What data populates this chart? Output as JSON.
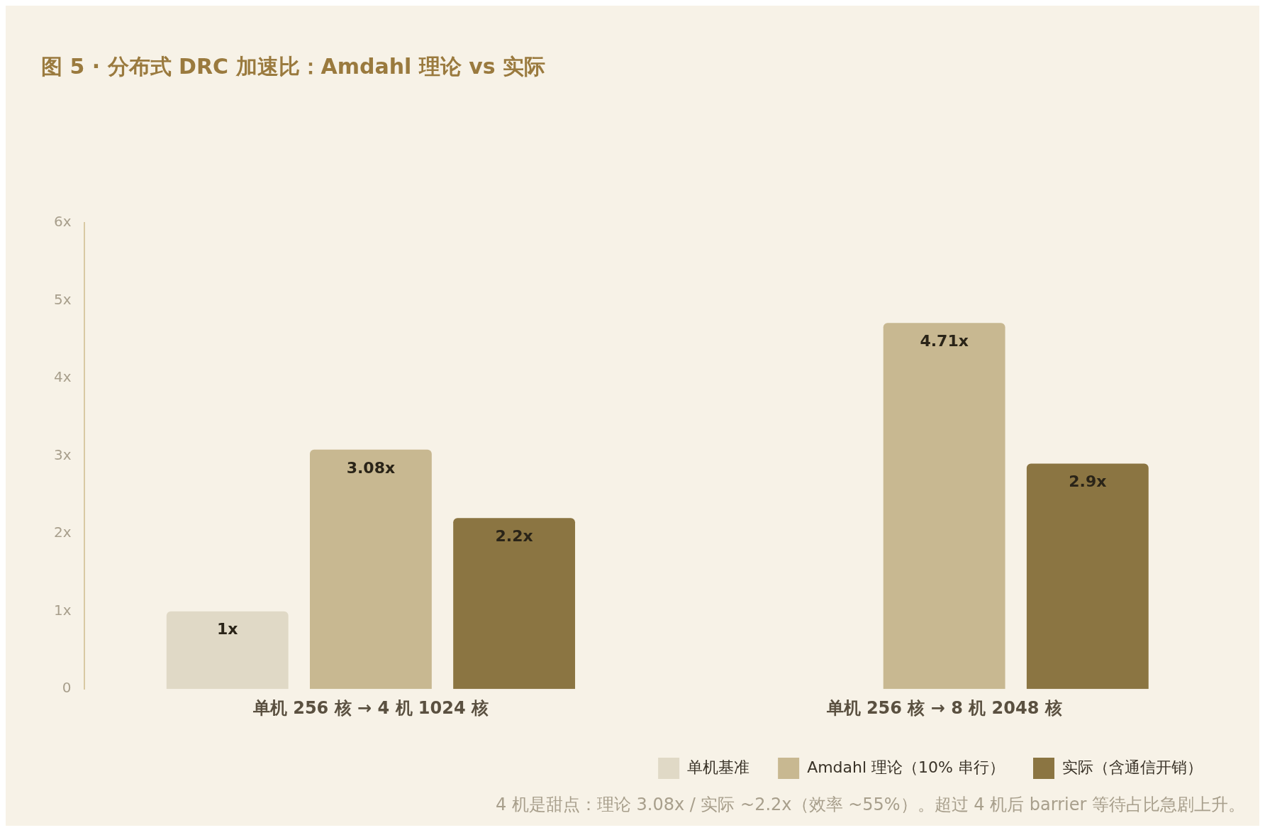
{
  "chart_data": {
    "type": "bar",
    "title": "图 5 · 分布式 DRC 加速比：Amdahl 理论 vs 实际",
    "categories": [
      "单机 256 核 → 4 机 1024 核",
      "单机 256 核 → 8 机 2048 核"
    ],
    "series": [
      {
        "name": "单机基准",
        "color": "#e0d9c6",
        "values": [
          1,
          null
        ],
        "value_labels": [
          "1x",
          null
        ]
      },
      {
        "name": "Amdahl 理论（10% 串行）",
        "color": "#c8b891",
        "values": [
          3.08,
          4.71
        ],
        "value_labels": [
          "3.08x",
          "4.71x"
        ]
      },
      {
        "name": "实际（含通信开销）",
        "color": "#8b7542",
        "values": [
          2.2,
          2.9
        ],
        "value_labels": [
          "2.2x",
          "2.9x"
        ]
      }
    ],
    "ylim": [
      0,
      6
    ],
    "yticks": [
      0,
      {
        "value": 1,
        "label": "1x"
      },
      {
        "value": 2,
        "label": "2x"
      },
      {
        "value": 3,
        "label": "3x"
      },
      {
        "value": 4,
        "label": "4x"
      },
      {
        "value": 5,
        "label": "5x"
      },
      {
        "value": 6,
        "label": "6x"
      }
    ],
    "grid": false,
    "legend": "bottom",
    "annotations": [
      "4 机是甜点：理论 3.08x / 实际 ~2.2x（效率 ~55%）。超过 4 机后 barrier 等待占比急剧上升。"
    ]
  }
}
